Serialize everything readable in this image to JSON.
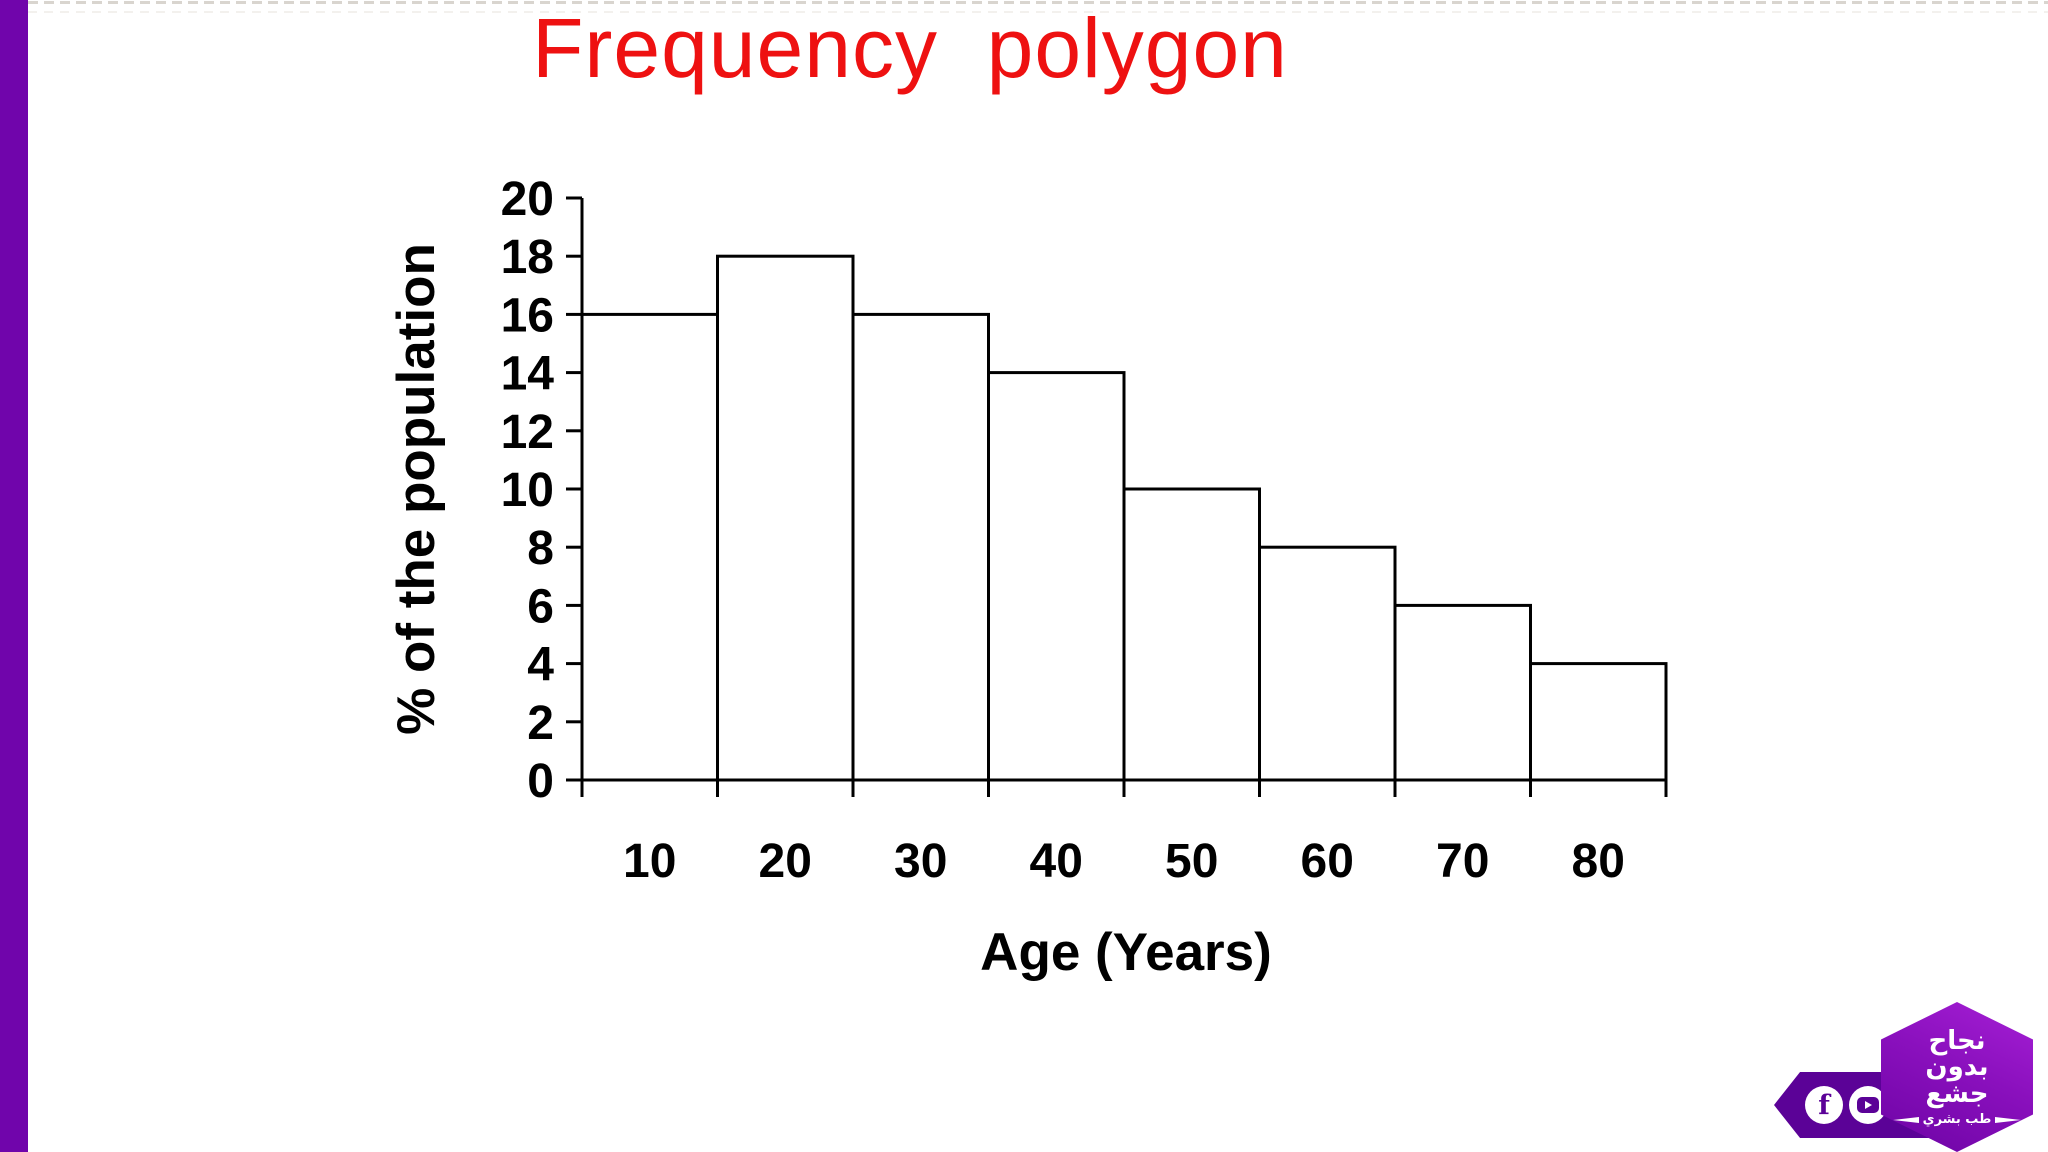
{
  "page": {
    "title_text": "Frequency  polygon",
    "title_color": "#ee1111",
    "accent_bar_color": "#7005ab",
    "background_color": "#ffffff"
  },
  "chart_data": {
    "type": "bar",
    "subtype": "histogram-adjacent-bars",
    "title": "Frequency  polygon",
    "categories": [
      "10",
      "20",
      "30",
      "40",
      "50",
      "60",
      "70",
      "80"
    ],
    "values": [
      16,
      18,
      16,
      14,
      10,
      8,
      6,
      4
    ],
    "xlabel": "Age (Years)",
    "ylabel": "% of the population",
    "ylim": [
      0,
      20
    ],
    "yticks": [
      0,
      2,
      4,
      6,
      8,
      10,
      12,
      14,
      16,
      18,
      20
    ],
    "grid": false,
    "legend": "none",
    "bar_fill": "#ffffff",
    "bar_stroke": "#000000",
    "axis_color": "#000000"
  },
  "logo": {
    "description": "purple hexagon channel badge with ribbon",
    "text_lines": [
      "نجاح",
      "بدون",
      "جشع"
    ],
    "tagline": "طب بشري",
    "social_icons": [
      "facebook",
      "youtube"
    ],
    "colors": {
      "hexagon_light": "#a61fd6",
      "hexagon_dark": "#6c03a4",
      "ribbon": "#5b0297",
      "icon_background": "#ffffff"
    }
  }
}
